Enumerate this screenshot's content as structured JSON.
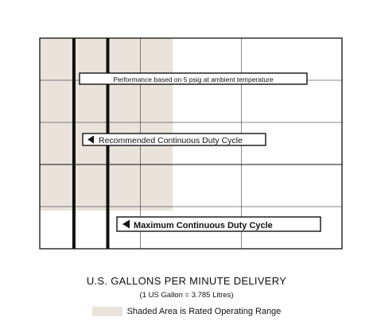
{
  "chart_data": {
    "type": "line",
    "shaded_region_note": "Shaded Area is Rated Operating Range",
    "callouts": {
      "performance": "Performance based on 5 psig at ambient temperature",
      "recommended": "Recommended Continuous Duty Cycle",
      "maximum": "Maximum Continuous Duty Cycle"
    },
    "footer": {
      "title": "U.S. GALLONS PER MINUTE DELIVERY",
      "conversion": "(1 US Gallon = 3.785 Litres)"
    },
    "colors": {
      "shade": "#e9e3dc",
      "ink": "#111111"
    }
  }
}
